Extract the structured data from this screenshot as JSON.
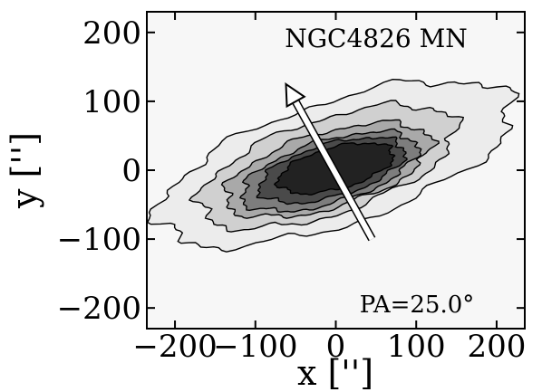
{
  "chart_data": {
    "type": "contour",
    "title": "NGC4826 MN",
    "xlabel": "x ['']",
    "ylabel": "y ['']",
    "xlim": [
      -235,
      235
    ],
    "ylim": [
      -230,
      230
    ],
    "grid": false,
    "x_ticks": [
      -200,
      -100,
      0,
      100,
      200
    ],
    "y_ticks": [
      -200,
      -100,
      0,
      100,
      200
    ],
    "x_tick_labels": [
      "−200",
      "−100",
      "0",
      "100",
      "200"
    ],
    "y_tick_labels": [
      "−200",
      "−100",
      "0",
      "100",
      "200"
    ],
    "pa_label": "PA=25.0°",
    "pa_deg": 25.0,
    "arrow": {
      "from": [
        45,
        -100
      ],
      "to": [
        -62,
        125
      ]
    },
    "contours": [
      {
        "level": 1,
        "color": "#ececec",
        "cx": 0,
        "cy": 10,
        "a": 235,
        "b": 88,
        "angle_deg": 22
      },
      {
        "level": 2,
        "color": "#d0d0d0",
        "cx": -10,
        "cy": 5,
        "a": 170,
        "b": 68,
        "angle_deg": 22
      },
      {
        "level": 3,
        "color": "#a9a9a9",
        "cx": -10,
        "cy": 0,
        "a": 135,
        "b": 54,
        "angle_deg": 20
      },
      {
        "level": 4,
        "color": "#7d7d7d",
        "cx": -8,
        "cy": -2,
        "a": 115,
        "b": 45,
        "angle_deg": 20
      },
      {
        "level": 5,
        "color": "#4a4a4a",
        "cx": -5,
        "cy": 0,
        "a": 95,
        "b": 38,
        "angle_deg": 19
      },
      {
        "level": 6,
        "color": "#222222",
        "cx": 0,
        "cy": 3,
        "a": 75,
        "b": 30,
        "angle_deg": 18
      }
    ]
  }
}
